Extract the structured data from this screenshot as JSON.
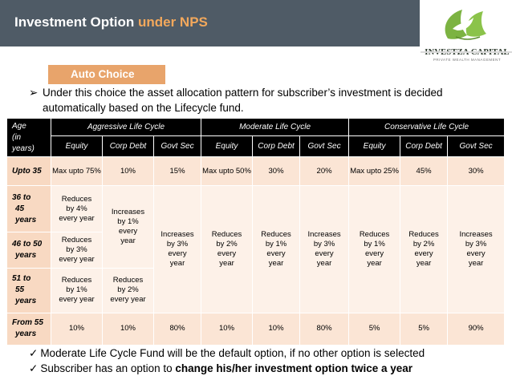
{
  "header": {
    "title_main": "Investment Option",
    "title_accent": "under NPS"
  },
  "logo": {
    "name": "INVESTZA CAPITAL",
    "tagline": "PRIVATE WEALTH MANAGEMENT",
    "icon": "dove-leaf-icon",
    "colors": {
      "leaf": "#7cb342",
      "dove": "#ffffff"
    }
  },
  "section": {
    "label": "Auto Choice",
    "bullet_icon": "➢",
    "text": "Under this choice the asset allocation pattern for subscriber’s investment is decided automatically based on the Lifecycle fund."
  },
  "table": {
    "age_header": [
      "Age",
      "(in",
      "years)"
    ],
    "groups": [
      "Aggressive Life Cycle",
      "Moderate Life Cycle",
      "Conservative Life Cycle"
    ],
    "subheaders": [
      "Equity",
      "Corp Debt",
      "Govt Sec",
      "Equity",
      "Corp Debt",
      "Govt Sec",
      "Equity",
      "Corp Debt",
      "Govt Sec"
    ],
    "rows": {
      "r1": {
        "label": "Upto 35",
        "cells": [
          "Max upto 75%",
          "10%",
          "15%",
          "Max upto 50%",
          "30%",
          "20%",
          "Max upto 25%",
          "45%",
          "30%"
        ]
      },
      "r2": {
        "label": [
          "36 to",
          "45",
          "years"
        ],
        "agg_equity": [
          "Reduces",
          "by 4%",
          "every year"
        ],
        "agg_corp": [
          "Increases",
          "by 1%",
          "every",
          "year"
        ]
      },
      "r3": {
        "label": [
          "46 to 50",
          "years"
        ],
        "agg_equity": [
          "Reduces",
          "by 3%",
          "every year"
        ]
      },
      "r4": {
        "label": [
          "51 to",
          "55",
          "years"
        ],
        "agg_equity": [
          "Reduces",
          "by 1%",
          "every year"
        ],
        "agg_corp": [
          "Reduces",
          "by 2%",
          "every year"
        ]
      },
      "merged": {
        "agg_govt": [
          "Increases",
          "by 3%",
          "every",
          "year"
        ],
        "mod_equity": [
          "Reduces",
          "by 2%",
          "every",
          "year"
        ],
        "mod_corp": [
          "Reduces",
          "by 1%",
          "every",
          "year"
        ],
        "mod_govt": [
          "Increases",
          "by 3%",
          "every",
          "year"
        ],
        "con_equity": [
          "Reduces",
          "by 1%",
          "every",
          "year"
        ],
        "con_corp": [
          "Reduces",
          "by 2%",
          "every",
          "year"
        ],
        "con_govt": [
          "Increases",
          "by 3%",
          "every",
          "year"
        ]
      },
      "r5": {
        "label": [
          "From 55",
          "years"
        ],
        "cells": [
          "10%",
          "10%",
          "80%",
          "10%",
          "10%",
          "80%",
          "5%",
          "5%",
          "90%"
        ]
      }
    }
  },
  "footer": {
    "check_icon": "✓",
    "line1": "Moderate Life Cycle Fund will be the default option, if no other option is  selected",
    "line2_plain": "Subscriber has an option to ",
    "line2_bold": "change his/her investment option twice a year"
  }
}
